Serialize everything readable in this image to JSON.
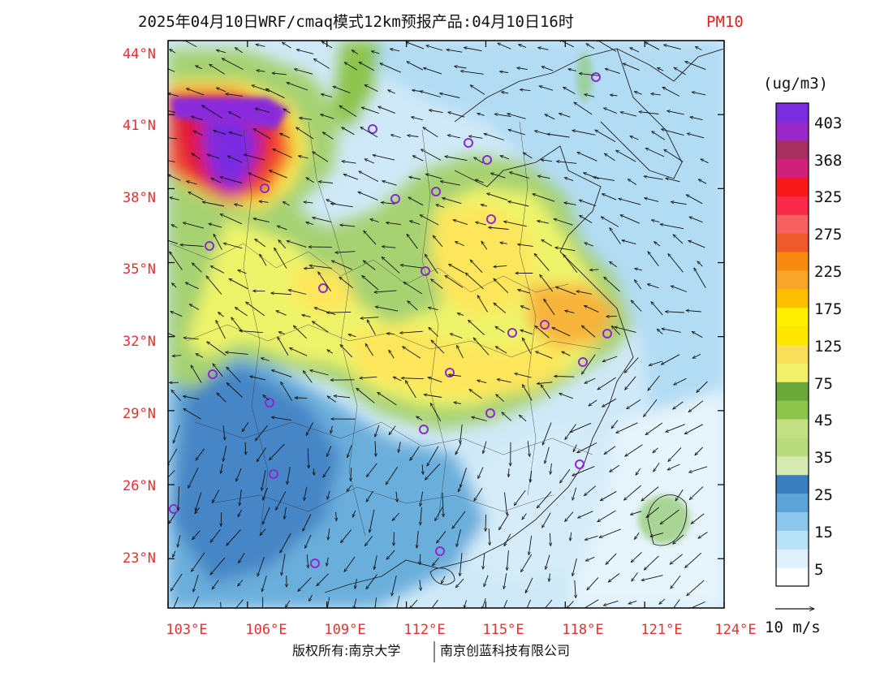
{
  "title": {
    "main": "2025年04月10日WRF/cmaq模式12km预报产品:04月10日16时",
    "pollutant": "PM10"
  },
  "map": {
    "lon_range": [
      103,
      124
    ],
    "lat_range": [
      21,
      44
    ],
    "lon_ticks": [
      "103°E",
      "106°E",
      "109°E",
      "112°E",
      "115°E",
      "118°E",
      "121°E",
      "124°E"
    ],
    "lat_ticks": [
      "44°N",
      "41°N",
      "38°N",
      "35°N",
      "32°N",
      "29°N",
      "26°N",
      "23°N"
    ],
    "tick_color": "#e53030"
  },
  "colorbar": {
    "unit": "(ug/m3)",
    "colors": [
      "#ffffff",
      "#ddf0fb",
      "#b8e2f6",
      "#8cc8ec",
      "#5aa4d8",
      "#3a7ec0",
      "#d6ebb4",
      "#b8db7c",
      "#c2e082",
      "#8cc44c",
      "#6aa83a",
      "#f0f06a",
      "#f8e05a",
      "#ffe600",
      "#fff000",
      "#fcc000",
      "#f9a52a",
      "#f98a10",
      "#ef5a2a",
      "#f76060",
      "#fa2a4a",
      "#f81818",
      "#d0207a",
      "#a83060",
      "#9a28c8",
      "#7a2ce0"
    ],
    "labels": [
      "5",
      "15",
      "25",
      "35",
      "45",
      "75",
      "125",
      "175",
      "225",
      "275",
      "325",
      "368",
      "403"
    ]
  },
  "wind_legend": {
    "label": "10 m/s"
  },
  "footer": {
    "left": "版权所有:南京大学",
    "right": "南京创蓝科技有限公司"
  }
}
